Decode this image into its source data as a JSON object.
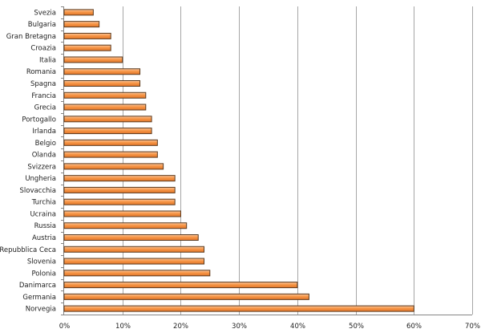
{
  "chart_data": {
    "type": "bar",
    "orientation": "horizontal",
    "title": "",
    "xlabel": "",
    "ylabel": "",
    "categories": [
      "Svezia",
      "Bulgaria",
      "Gran Bretagna",
      "Croazia",
      "Italia",
      "Romania",
      "Spagna",
      "Francia",
      "Grecia",
      "Portogallo",
      "Irlanda",
      "Belgio",
      "Olanda",
      "Svizzera",
      "Ungheria",
      "Slovacchia",
      "Turchia",
      "Ucraina",
      "Russia",
      "Austria",
      "Repubblica Ceca",
      "Slovenia",
      "Polonia",
      "Danimarca",
      "Germania",
      "Norvegia"
    ],
    "values": [
      5,
      6,
      8,
      8,
      10,
      13,
      13,
      14,
      14,
      15,
      15,
      16,
      16,
      17,
      19,
      19,
      19,
      20,
      21,
      23,
      24,
      24,
      25,
      40,
      42,
      60
    ],
    "unit": "%",
    "xlim": [
      0,
      70
    ],
    "xticks": [
      "0%",
      "10%",
      "20%",
      "30%",
      "40%",
      "50%",
      "60%",
      "70%"
    ],
    "grid": true,
    "legend": "none",
    "colors": {
      "bar_fill": "#f79646",
      "bar_light": "#fbc7a0",
      "bar_border": "#5b3a1e",
      "grid": "#a6a6a6"
    }
  }
}
